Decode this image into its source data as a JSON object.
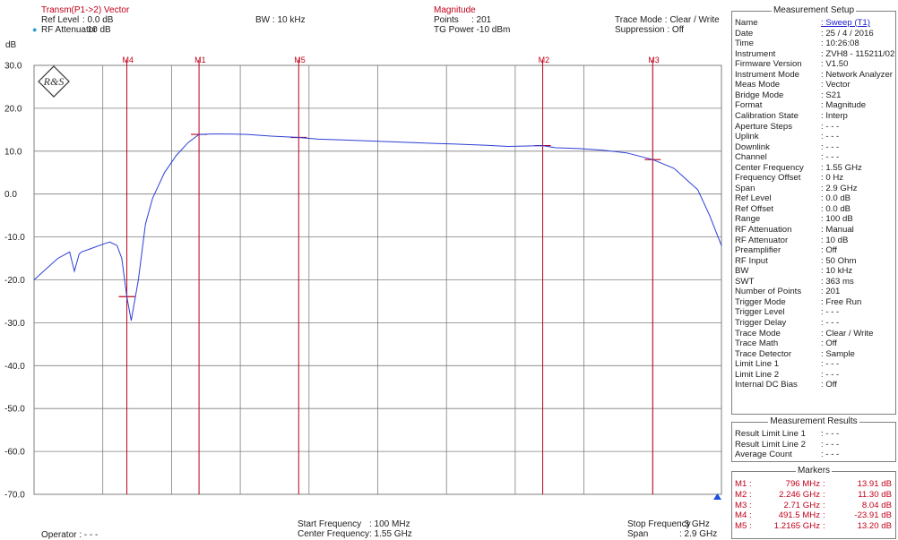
{
  "header": {
    "trace_title": "Transm(P1->2) Vector",
    "ref_level_label": "Ref Level",
    "ref_level_value": ": 0.0 dB",
    "rf_att_label": "RF Attenuator",
    "rf_att_value": ": 10   dB",
    "bw": "BW : 10 kHz",
    "format_title": "Magnitude",
    "points_label": "Points",
    "points_value": ": 201",
    "tg_power_label": "TG Power",
    "tg_power_value": ": -10 dBm",
    "trace_mode": "Trace Mode : Clear / Write",
    "suppression": "Suppression : Off"
  },
  "footer": {
    "operator": "Operator : - - -",
    "start_freq_label": "Start Frequency",
    "start_freq_value": ": 100   MHz",
    "center_freq_label": "Center Frequency",
    "center_freq_value": ":  1.55 GHz",
    "stop_freq_label": "Stop Frequency",
    "stop_freq_value": ": 3   GHz",
    "span_label": "Span",
    "span_value": ": 2.9 GHz"
  },
  "colors": {
    "trace": "#2b3fd6",
    "marker": "#c0001a",
    "grid": "#7f7f7f",
    "reference_triangle": "#1f4fe0"
  },
  "logo_text": "R&S",
  "chart_data": {
    "type": "line",
    "ylabel": "dB",
    "ylim": [
      -70,
      30
    ],
    "y_ticks": [
      30,
      20,
      10,
      0,
      -10,
      -20,
      -30,
      -40,
      -50,
      -60,
      -70
    ],
    "y_tick_labels": [
      "30.0",
      "20.0",
      "10.0",
      "0.0",
      "-10.0",
      "-20.0",
      "-30.0",
      "-40.0",
      "-50.0",
      "-60.0",
      "-70.0"
    ],
    "xlim_mhz": [
      100,
      3000
    ],
    "x_divisions": 10,
    "grid": true,
    "series": [
      {
        "x_mhz": [
          100,
          200,
          250,
          270,
          290,
          300,
          350,
          400,
          420,
          450,
          470,
          491.5,
          510,
          540,
          570,
          600,
          650,
          700,
          750,
          796,
          850,
          900,
          1000,
          1100,
          1216.5,
          1300,
          1400,
          1500,
          1600,
          1700,
          1800,
          1900,
          2000,
          2100,
          2246,
          2300,
          2400,
          2500,
          2600,
          2710,
          2800,
          2900,
          2950,
          3000
        ],
        "y_db": [
          -20,
          -15,
          -13.5,
          -18,
          -14,
          -13.5,
          -12.5,
          -11.5,
          -11.2,
          -12,
          -15,
          -23.91,
          -29.5,
          -20,
          -7,
          -1,
          5,
          9,
          12,
          13.91,
          14,
          14,
          13.9,
          13.5,
          13.2,
          12.8,
          12.6,
          12.4,
          12.2,
          12,
          11.8,
          11.6,
          11.4,
          11.1,
          11.3,
          10.8,
          10.6,
          10.2,
          9.6,
          8.04,
          6,
          1,
          -5,
          -12
        ]
      }
    ],
    "markers": [
      {
        "label": "M1",
        "freq": "796 MHz",
        "value": "13.91 dB",
        "x_mhz": 796,
        "y_db": 13.91
      },
      {
        "label": "M2",
        "freq": "2.246 GHz",
        "value": "11.30 dB",
        "x_mhz": 2246,
        "y_db": 11.3
      },
      {
        "label": "M3",
        "freq": "2.71 GHz",
        "value": "8.04 dB",
        "x_mhz": 2710,
        "y_db": 8.04
      },
      {
        "label": "M4",
        "freq": "491.5 MHz",
        "value": "-23.91 dB",
        "x_mhz": 491.5,
        "y_db": -23.91
      },
      {
        "label": "M5",
        "freq": "1.2165 GHz",
        "value": "13.20 dB",
        "x_mhz": 1216.5,
        "y_db": 13.2
      }
    ]
  },
  "measurement_setup": {
    "title": "Measurement Setup",
    "rows": [
      {
        "k": "Name",
        "v": ": Sweep (T1)",
        "link": true
      },
      {
        "k": "Date",
        "v": ": 25 / 4 / 2016"
      },
      {
        "k": "Time",
        "v": ": 10:26:08"
      },
      {
        "k": "Instrument",
        "v": ": ZVH8 - 115211/02"
      },
      {
        "k": "Firmware Version",
        "v": ": V1.50"
      },
      {
        "k": "Instrument Mode",
        "v": ": Network Analyzer"
      },
      {
        "k": "Meas Mode",
        "v": ": Vector"
      },
      {
        "k": "Bridge Mode",
        "v": ": S21"
      },
      {
        "k": "Format",
        "v": ": Magnitude"
      },
      {
        "k": "Calibration State",
        "v": ": Interp"
      },
      {
        "k": "Aperture Steps",
        "v": ": - - -"
      },
      {
        "k": "Uplink",
        "v": ": - - -"
      },
      {
        "k": "Downlink",
        "v": ": - - -"
      },
      {
        "k": "Channel",
        "v": ": - - -"
      },
      {
        "k": "Center Frequency",
        "v": ":    1.55 GHz"
      },
      {
        "k": "Frequency Offset",
        "v": ":    0    Hz"
      },
      {
        "k": "Span",
        "v": ":    2.9  GHz"
      },
      {
        "k": "Ref Level",
        "v": ":    0.0  dB"
      },
      {
        "k": "Ref Offset",
        "v": ":    0.0  dB"
      },
      {
        "k": "Range",
        "v": ": 100   dB"
      },
      {
        "k": "RF Attenuation",
        "v": ": Manual"
      },
      {
        "k": "RF Attenuator",
        "v": ":  10    dB"
      },
      {
        "k": "Preamplifier",
        "v": ": Off"
      },
      {
        "k": "RF Input",
        "v": ": 50 Ohm"
      },
      {
        "k": "BW",
        "v": ":  10    kHz"
      },
      {
        "k": "SWT",
        "v": ":  363    ms"
      },
      {
        "k": "Number of Points",
        "v": ": 201"
      },
      {
        "k": "Trigger Mode",
        "v": ": Free Run"
      },
      {
        "k": "Trigger Level",
        "v": ": - - -"
      },
      {
        "k": "Trigger Delay",
        "v": ": - - -"
      },
      {
        "k": "Trace Mode",
        "v": ": Clear / Write"
      },
      {
        "k": "Trace Math",
        "v": ": Off"
      },
      {
        "k": "Trace Detector",
        "v": ": Sample"
      },
      {
        "k": "Limit Line 1",
        "v": ": - - -"
      },
      {
        "k": "Limit Line 2",
        "v": ": - - -"
      },
      {
        "k": "Internal DC Bias",
        "v": ": Off"
      }
    ]
  },
  "measurement_results": {
    "title": "Measurement Results",
    "rows": [
      {
        "k": "Result Limit Line 1",
        "v": ": - - -"
      },
      {
        "k": "Result Limit Line 2",
        "v": ": - - -"
      },
      {
        "k": "Average Count",
        "v": ": - - -"
      }
    ]
  },
  "markers_panel": {
    "title": "Markers",
    "rows": [
      {
        "k": "M1 :",
        "f": "796 MHz",
        "d": "13.91 dB"
      },
      {
        "k": "M2 :",
        "f": "2.246 GHz",
        "d": "11.30 dB"
      },
      {
        "k": "M3 :",
        "f": "2.71 GHz",
        "d": "8.04 dB"
      },
      {
        "k": "M4 :",
        "f": "491.5 MHz",
        "d": "-23.91 dB"
      },
      {
        "k": "M5 :",
        "f": "1.2165 GHz",
        "d": "13.20 dB"
      }
    ]
  }
}
